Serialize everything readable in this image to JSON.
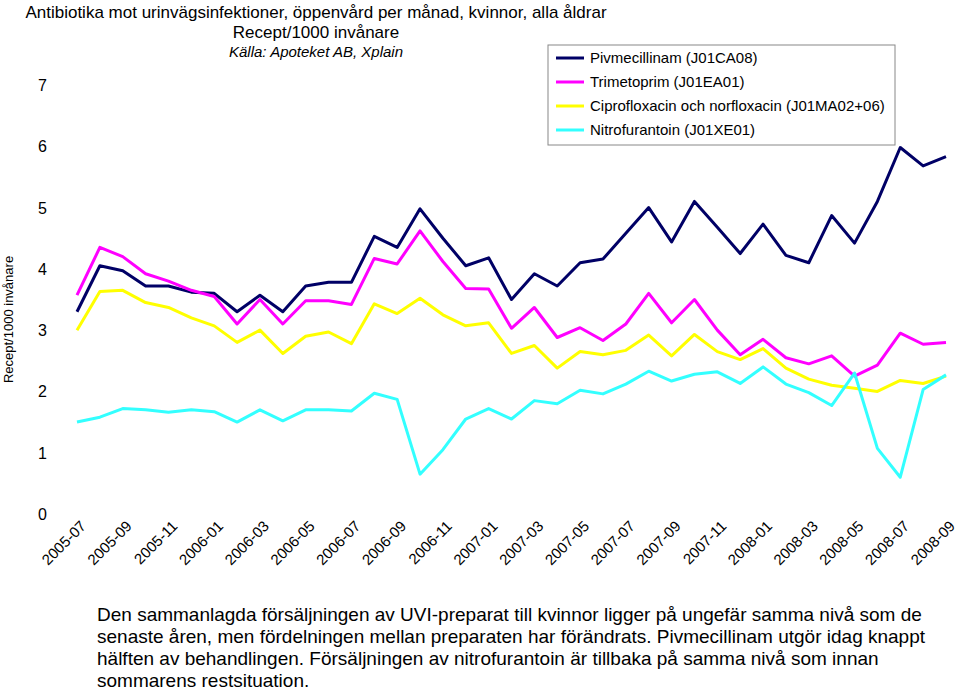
{
  "chart_data": {
    "type": "line",
    "title": "Antibiotika mot urinvägsinfektioner, öppenvård per månad, kvinnor, alla åldrar",
    "subtitle": "Recept/1000 invånare",
    "annotations": [
      "Källa: Apoteket AB, Xplain",
      "Den sammanlagda försäljningen av UVI-preparat till kvinnor ligger på ungefär samma nivå som de senaste åren, men fördelningen mellan preparaten har förändrats. Pivmecillinam utgör idag knappt hälften av behandlingen. Försäljningen av nitrofurantoin är tillbaka på samma nivå som innan sommarens restsituation."
    ],
    "y_label": "Recept/1000 invånare",
    "categories": [
      "2005-07",
      null,
      "2005-09",
      null,
      "2005-11",
      null,
      "2006-01",
      null,
      "2006-03",
      null,
      "2006-05",
      null,
      "2006-07",
      null,
      "2006-09",
      null,
      "2006-11",
      null,
      "2007-01",
      null,
      "2007-03",
      null,
      "2007-05",
      null,
      "2007-07",
      null,
      "2007-09",
      null,
      "2007-11",
      null,
      "2008-01",
      null,
      "2008-03",
      null,
      "2008-05",
      null,
      "2008-07",
      null,
      "2008-09"
    ],
    "series": [
      {
        "name": "Pivmecillinam (J01CA08)",
        "color": "#000066",
        "values": [
          3.3,
          4.05,
          3.97,
          3.72,
          3.72,
          3.62,
          3.6,
          3.3,
          3.57,
          3.3,
          3.72,
          3.78,
          3.78,
          4.53,
          4.35,
          4.98,
          4.5,
          4.05,
          4.18,
          3.5,
          3.92,
          3.72,
          4.1,
          4.16,
          4.58,
          5.0,
          4.44,
          5.1,
          4.68,
          4.25,
          4.73,
          4.22,
          4.1,
          4.87,
          4.42,
          5.1,
          5.98,
          5.68,
          5.83
        ]
      },
      {
        "name": "Trimetoprim (J01EA01)",
        "color": "#ff00ff",
        "values": [
          3.57,
          4.35,
          4.2,
          3.92,
          3.8,
          3.65,
          3.55,
          3.1,
          3.5,
          3.1,
          3.48,
          3.48,
          3.42,
          4.17,
          4.08,
          4.62,
          4.12,
          3.68,
          3.67,
          3.03,
          3.37,
          2.88,
          3.04,
          2.83,
          3.1,
          3.6,
          3.12,
          3.5,
          3.0,
          2.6,
          2.85,
          2.55,
          2.45,
          2.58,
          2.25,
          2.43,
          2.95,
          2.77,
          2.8
        ]
      },
      {
        "name": "Ciprofloxacin och norfloxacin (J01MA02+06)",
        "color": "#ffff00",
        "values": [
          3.0,
          3.63,
          3.65,
          3.45,
          3.37,
          3.2,
          3.07,
          2.8,
          3.0,
          2.62,
          2.9,
          2.97,
          2.78,
          3.43,
          3.27,
          3.52,
          3.25,
          3.07,
          3.12,
          2.62,
          2.75,
          2.38,
          2.65,
          2.6,
          2.67,
          2.92,
          2.58,
          2.93,
          2.65,
          2.52,
          2.7,
          2.38,
          2.2,
          2.1,
          2.05,
          2.0,
          2.18,
          2.13,
          2.25
        ]
      },
      {
        "name": "Nitrofurantoin (J01XE01)",
        "color": "#33ffff",
        "values": [
          1.5,
          1.58,
          1.72,
          1.7,
          1.66,
          1.7,
          1.67,
          1.5,
          1.7,
          1.52,
          1.7,
          1.7,
          1.68,
          1.97,
          1.87,
          0.65,
          1.05,
          1.55,
          1.72,
          1.55,
          1.85,
          1.8,
          2.02,
          1.96,
          2.12,
          2.33,
          2.17,
          2.28,
          2.32,
          2.13,
          2.4,
          2.12,
          1.98,
          1.77,
          2.3,
          1.07,
          0.6,
          2.03,
          2.27
        ]
      }
    ],
    "ylim": [
      0,
      7
    ],
    "yticks": [
      0,
      1,
      2,
      3,
      4,
      5,
      6,
      7
    ],
    "grid": false,
    "legend": "upper right"
  }
}
